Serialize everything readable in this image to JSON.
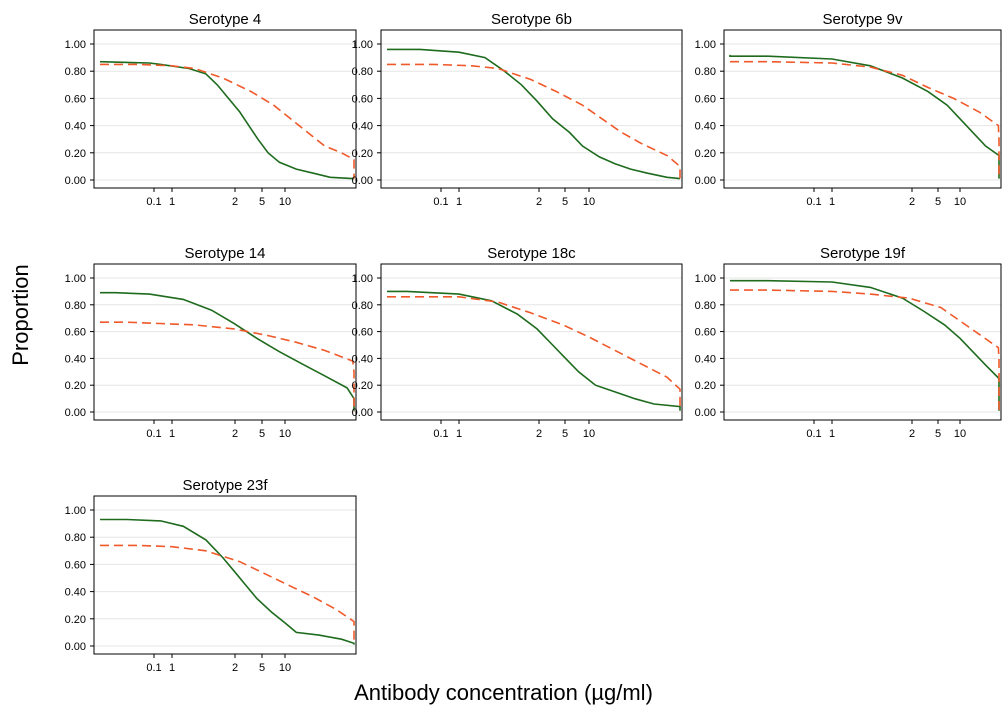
{
  "chart_data": [
    {
      "type": "line",
      "title": "Serotype 4",
      "x_ticks": [
        "0.1",
        "1",
        "2",
        "5",
        "10"
      ],
      "y_ticks": [
        "0.00",
        "0.20",
        "0.40",
        "0.60",
        "0.80",
        "1.00"
      ],
      "ylim": [
        0,
        1
      ],
      "series": [
        {
          "color": "#1e6b1e",
          "dash": "solid",
          "points": [
            [
              -2.3,
              0.87
            ],
            [
              -0.2,
              0.86
            ],
            [
              -0.1,
              0.85
            ],
            [
              0.15,
              0.82
            ],
            [
              0.3,
              0.78
            ],
            [
              0.4,
              0.7
            ],
            [
              0.5,
              0.6
            ],
            [
              0.6,
              0.5
            ],
            [
              0.68,
              0.4
            ],
            [
              0.76,
              0.3
            ],
            [
              0.85,
              0.2
            ],
            [
              0.95,
              0.13
            ],
            [
              1.1,
              0.08
            ],
            [
              1.25,
              0.05
            ],
            [
              1.4,
              0.02
            ],
            [
              1.6,
              0.01
            ],
            [
              2.2,
              0.01
            ]
          ]
        },
        {
          "color": "#f0592a",
          "dash": "dashed",
          "points": [
            [
              -2.3,
              0.85
            ],
            [
              -0.3,
              0.85
            ],
            [
              0.0,
              0.84
            ],
            [
              0.2,
              0.82
            ],
            [
              0.45,
              0.75
            ],
            [
              0.7,
              0.65
            ],
            [
              0.9,
              0.55
            ],
            [
              1.05,
              0.45
            ],
            [
              1.2,
              0.35
            ],
            [
              1.35,
              0.25
            ],
            [
              1.5,
              0.2
            ],
            [
              1.65,
              0.15
            ],
            [
              1.8,
              0.1
            ],
            [
              2.0,
              0.04
            ],
            [
              2.1,
              0.01
            ]
          ]
        }
      ]
    },
    {
      "type": "line",
      "title": "Serotype 6b",
      "x_ticks": [
        "0.1",
        "1",
        "2",
        "5",
        "10"
      ],
      "y_ticks": [
        "0.00",
        "0.20",
        "0.40",
        "0.60",
        "0.80",
        "1.00"
      ],
      "ylim": [
        0,
        1
      ],
      "series": [
        {
          "color": "#1e6b1e",
          "dash": "solid",
          "points": [
            [
              -2.3,
              0.96
            ],
            [
              -0.3,
              0.96
            ],
            [
              0.0,
              0.94
            ],
            [
              0.2,
              0.9
            ],
            [
              0.35,
              0.8
            ],
            [
              0.48,
              0.7
            ],
            [
              0.6,
              0.58
            ],
            [
              0.72,
              0.45
            ],
            [
              0.85,
              0.35
            ],
            [
              0.95,
              0.25
            ],
            [
              1.08,
              0.17
            ],
            [
              1.2,
              0.12
            ],
            [
              1.32,
              0.08
            ],
            [
              1.45,
              0.05
            ],
            [
              1.6,
              0.02
            ],
            [
              1.75,
              0.01
            ]
          ]
        },
        {
          "color": "#f0592a",
          "dash": "dashed",
          "points": [
            [
              -2.3,
              0.85
            ],
            [
              -0.2,
              0.85
            ],
            [
              0.1,
              0.84
            ],
            [
              0.3,
              0.82
            ],
            [
              0.55,
              0.74
            ],
            [
              0.75,
              0.65
            ],
            [
              0.95,
              0.55
            ],
            [
              1.1,
              0.45
            ],
            [
              1.25,
              0.35
            ],
            [
              1.4,
              0.27
            ],
            [
              1.6,
              0.18
            ],
            [
              1.8,
              0.1
            ],
            [
              2.0,
              0.04
            ],
            [
              2.15,
              0.01
            ]
          ]
        }
      ]
    },
    {
      "type": "line",
      "title": "Serotype 9v",
      "x_ticks": [
        "0.1",
        "1",
        "2",
        "5",
        "10"
      ],
      "y_ticks": [
        "0.00",
        "0.20",
        "0.40",
        "0.60",
        "0.80",
        "1.00"
      ],
      "ylim": [
        0,
        1
      ],
      "series": [
        {
          "color": "#1e6b1e",
          "dash": "solid",
          "points": [
            [
              -2.3,
              0.92
            ],
            [
              -1.5,
              0.91
            ],
            [
              -0.5,
              0.91
            ],
            [
              0.0,
              0.89
            ],
            [
              0.3,
              0.84
            ],
            [
              0.55,
              0.75
            ],
            [
              0.75,
              0.65
            ],
            [
              0.9,
              0.55
            ],
            [
              1.0,
              0.45
            ],
            [
              1.1,
              0.35
            ],
            [
              1.2,
              0.25
            ],
            [
              1.35,
              0.18
            ],
            [
              1.5,
              0.12
            ],
            [
              1.65,
              0.07
            ],
            [
              1.8,
              0.03
            ],
            [
              1.9,
              0.01
            ]
          ]
        },
        {
          "color": "#f0592a",
          "dash": "dashed",
          "points": [
            [
              -2.3,
              0.87
            ],
            [
              -0.5,
              0.87
            ],
            [
              0.0,
              0.86
            ],
            [
              0.3,
              0.83
            ],
            [
              0.55,
              0.77
            ],
            [
              0.75,
              0.68
            ],
            [
              0.95,
              0.6
            ],
            [
              1.15,
              0.5
            ],
            [
              1.3,
              0.4
            ],
            [
              1.45,
              0.3
            ],
            [
              1.6,
              0.2
            ],
            [
              1.75,
              0.12
            ],
            [
              1.95,
              0.06
            ],
            [
              2.15,
              0.02
            ],
            [
              2.3,
              0.01
            ]
          ]
        }
      ]
    },
    {
      "type": "line",
      "title": "Serotype 14",
      "x_ticks": [
        "0.1",
        "1",
        "2",
        "5",
        "10"
      ],
      "y_ticks": [
        "0.00",
        "0.20",
        "0.40",
        "0.60",
        "0.80",
        "1.00"
      ],
      "ylim": [
        0,
        1
      ],
      "series": [
        {
          "color": "#1e6b1e",
          "dash": "solid",
          "points": [
            [
              -1.8,
              0.89
            ],
            [
              -0.5,
              0.89
            ],
            [
              -0.2,
              0.88
            ],
            [
              0.1,
              0.84
            ],
            [
              0.35,
              0.76
            ],
            [
              0.55,
              0.66
            ],
            [
              0.75,
              0.55
            ],
            [
              0.95,
              0.45
            ],
            [
              1.15,
              0.36
            ],
            [
              1.35,
              0.27
            ],
            [
              1.55,
              0.18
            ],
            [
              1.75,
              0.1
            ],
            [
              1.95,
              0.05
            ],
            [
              2.15,
              0.01
            ]
          ]
        },
        {
          "color": "#f0592a",
          "dash": "dashed",
          "points": [
            [
              -1.8,
              0.67
            ],
            [
              -0.4,
              0.67
            ],
            [
              0.2,
              0.65
            ],
            [
              0.55,
              0.62
            ],
            [
              0.85,
              0.57
            ],
            [
              1.1,
              0.52
            ],
            [
              1.35,
              0.46
            ],
            [
              1.6,
              0.38
            ],
            [
              1.85,
              0.3
            ],
            [
              2.05,
              0.22
            ],
            [
              2.25,
              0.15
            ],
            [
              2.45,
              0.08
            ],
            [
              2.6,
              0.03
            ],
            [
              2.7,
              0.0
            ]
          ]
        }
      ]
    },
    {
      "type": "line",
      "title": "Serotype 18c",
      "x_ticks": [
        "0.1",
        "1",
        "2",
        "5",
        "10"
      ],
      "y_ticks": [
        "0.00",
        "0.20",
        "0.40",
        "0.60",
        "0.80",
        "1.00"
      ],
      "ylim": [
        0,
        1
      ],
      "series": [
        {
          "color": "#1e6b1e",
          "dash": "solid",
          "points": [
            [
              -2.3,
              0.9
            ],
            [
              -1.0,
              0.9
            ],
            [
              -0.4,
              0.9
            ],
            [
              0.0,
              0.88
            ],
            [
              0.25,
              0.83
            ],
            [
              0.45,
              0.73
            ],
            [
              0.6,
              0.62
            ],
            [
              0.72,
              0.5
            ],
            [
              0.82,
              0.4
            ],
            [
              0.92,
              0.3
            ],
            [
              1.05,
              0.2
            ],
            [
              1.2,
              0.15
            ],
            [
              1.35,
              0.1
            ],
            [
              1.5,
              0.06
            ],
            [
              1.8,
              0.04
            ],
            [
              2.0,
              0.02
            ],
            [
              2.3,
              0.01
            ]
          ]
        },
        {
          "color": "#f0592a",
          "dash": "dashed",
          "points": [
            [
              -2.3,
              0.86
            ],
            [
              -0.5,
              0.86
            ],
            [
              0.0,
              0.86
            ],
            [
              0.3,
              0.82
            ],
            [
              0.55,
              0.74
            ],
            [
              0.8,
              0.65
            ],
            [
              1.0,
              0.56
            ],
            [
              1.2,
              0.46
            ],
            [
              1.4,
              0.36
            ],
            [
              1.6,
              0.26
            ],
            [
              1.8,
              0.17
            ],
            [
              2.0,
              0.1
            ],
            [
              2.2,
              0.04
            ],
            [
              2.4,
              0.01
            ]
          ]
        }
      ]
    },
    {
      "type": "line",
      "title": "Serotype 19f",
      "x_ticks": [
        "0.1",
        "1",
        "2",
        "5",
        "10"
      ],
      "y_ticks": [
        "0.00",
        "0.20",
        "0.40",
        "0.60",
        "0.80",
        "1.00"
      ],
      "ylim": [
        0,
        1
      ],
      "series": [
        {
          "color": "#1e6b1e",
          "dash": "solid",
          "points": [
            [
              -2.3,
              0.98
            ],
            [
              -0.5,
              0.98
            ],
            [
              0.0,
              0.97
            ],
            [
              0.3,
              0.93
            ],
            [
              0.55,
              0.85
            ],
            [
              0.72,
              0.75
            ],
            [
              0.88,
              0.65
            ],
            [
              1.0,
              0.55
            ],
            [
              1.1,
              0.45
            ],
            [
              1.2,
              0.35
            ],
            [
              1.32,
              0.25
            ],
            [
              1.45,
              0.17
            ],
            [
              1.6,
              0.1
            ],
            [
              1.8,
              0.05
            ],
            [
              2.1,
              0.03
            ],
            [
              2.4,
              0.01
            ]
          ]
        },
        {
          "color": "#f0592a",
          "dash": "dashed",
          "points": [
            [
              -2.3,
              0.91
            ],
            [
              -0.5,
              0.91
            ],
            [
              0.0,
              0.9
            ],
            [
              0.3,
              0.88
            ],
            [
              0.6,
              0.85
            ],
            [
              0.85,
              0.78
            ],
            [
              1.0,
              0.68
            ],
            [
              1.15,
              0.58
            ],
            [
              1.3,
              0.48
            ],
            [
              1.45,
              0.38
            ],
            [
              1.58,
              0.28
            ],
            [
              1.72,
              0.18
            ],
            [
              1.9,
              0.1
            ],
            [
              2.1,
              0.05
            ],
            [
              2.35,
              0.02
            ],
            [
              2.6,
              0.01
            ]
          ]
        }
      ]
    },
    {
      "type": "line",
      "title": "Serotype 23f",
      "x_ticks": [
        "0.1",
        "1",
        "2",
        "5",
        "10"
      ],
      "y_ticks": [
        "0.00",
        "0.20",
        "0.40",
        "0.60",
        "0.80",
        "1.00"
      ],
      "ylim": [
        0,
        1
      ],
      "series": [
        {
          "color": "#1e6b1e",
          "dash": "solid",
          "points": [
            [
              -2.3,
              0.93
            ],
            [
              -0.4,
              0.93
            ],
            [
              -0.1,
              0.92
            ],
            [
              0.1,
              0.88
            ],
            [
              0.3,
              0.78
            ],
            [
              0.45,
              0.65
            ],
            [
              0.55,
              0.55
            ],
            [
              0.65,
              0.45
            ],
            [
              0.75,
              0.35
            ],
            [
              0.88,
              0.25
            ],
            [
              1.0,
              0.17
            ],
            [
              1.1,
              0.1
            ],
            [
              1.3,
              0.08
            ],
            [
              1.5,
              0.05
            ],
            [
              1.65,
              0.02
            ],
            [
              1.75,
              0.01
            ]
          ]
        },
        {
          "color": "#f0592a",
          "dash": "dashed",
          "points": [
            [
              -2.3,
              0.74
            ],
            [
              -0.3,
              0.74
            ],
            [
              0.0,
              0.73
            ],
            [
              0.3,
              0.7
            ],
            [
              0.6,
              0.62
            ],
            [
              0.85,
              0.52
            ],
            [
              1.05,
              0.44
            ],
            [
              1.25,
              0.36
            ],
            [
              1.45,
              0.27
            ],
            [
              1.65,
              0.18
            ],
            [
              1.85,
              0.1
            ],
            [
              2.0,
              0.04
            ],
            [
              2.15,
              0.01
            ]
          ]
        }
      ]
    }
  ],
  "axes": {
    "ylabel": "Proportion",
    "xlabel": "Antibody concentration (µg/ml)"
  }
}
